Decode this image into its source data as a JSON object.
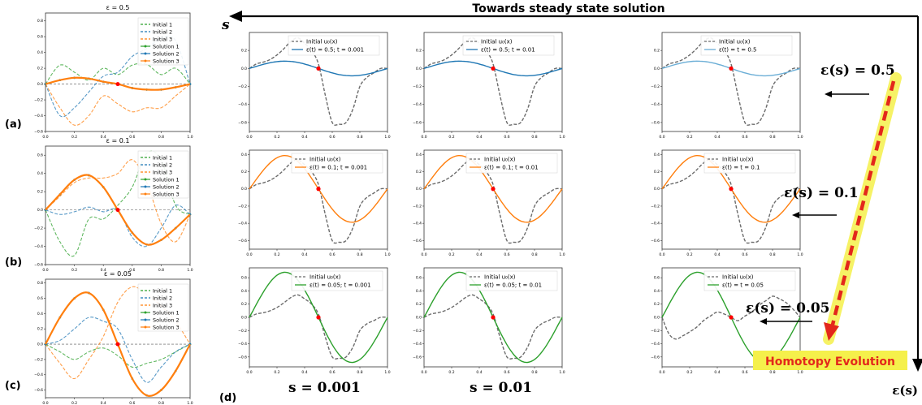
{
  "figure": {
    "top_arrow_label": "Towards steady state solution",
    "s_axis_label": "s",
    "eps_axis_label": "ε(s)",
    "homotopy_label": "Homotopy Evolution",
    "row_eps_labels": [
      "ε(s) = 0.5",
      "ε(s) = 0.1",
      "ε(s) = 0.05"
    ],
    "col_s_labels": [
      "s = 0.001",
      "s = 0.01"
    ],
    "panel_letters": [
      "(a)",
      "(b)",
      "(c)",
      "(d)"
    ],
    "colors": {
      "initial1": "#2ca02c",
      "initial2": "#1f77b4",
      "initial3": "#ff7f0e",
      "row_a": "#1f77b4",
      "row_a_steady": "#6baed6",
      "row_b": "#ff7f0e",
      "row_c": "#2ca02c",
      "init_dashed": "#6b6b6b",
      "center_point": "#ff0000",
      "homotopy_arrow": "#e3271b",
      "homotopy_glow": "#f5f04b"
    }
  },
  "chart_data": [
    {
      "type": "line",
      "panel": "a",
      "title": "ε = 0.5",
      "x": [
        0,
        0.1,
        0.2,
        0.3,
        0.4,
        0.5,
        0.6,
        0.7,
        0.8,
        0.9,
        1.0
      ],
      "xlim": [
        0,
        1
      ],
      "ylim": [
        -0.6,
        0.9
      ],
      "xticks": [
        "0.0",
        "0.2",
        "0.4",
        "0.6",
        "0.8",
        "1.0"
      ],
      "yticks": [
        "−0.6",
        "−0.4",
        "−0.2",
        "0.0",
        "0.2",
        "0.4",
        "0.6",
        "0.8"
      ],
      "series": [
        {
          "name": "Initial 1",
          "values": [
            0,
            0.24,
            0.15,
            0.05,
            0.2,
            0.12,
            0.24,
            0.25,
            0.12,
            0.2,
            0.0
          ]
        },
        {
          "name": "Initial 2",
          "values": [
            0,
            -0.4,
            -0.3,
            -0.1,
            0.1,
            0.15,
            0.35,
            0.45,
            0.58,
            0.55,
            0.0
          ]
        },
        {
          "name": "Initial 3",
          "values": [
            0,
            -0.3,
            -0.52,
            -0.4,
            -0.15,
            -0.25,
            -0.35,
            -0.3,
            -0.3,
            -0.15,
            0.0
          ]
        },
        {
          "name": "Solution 1",
          "values": [
            0,
            0.05,
            0.08,
            0.07,
            0.03,
            0,
            -0.05,
            -0.07,
            -0.07,
            -0.04,
            0
          ]
        },
        {
          "name": "Solution 2",
          "values": [
            0,
            0.05,
            0.08,
            0.07,
            0.03,
            0,
            -0.05,
            -0.07,
            -0.07,
            -0.04,
            0
          ]
        },
        {
          "name": "Solution 3",
          "values": [
            0,
            0.05,
            0.08,
            0.07,
            0.03,
            0,
            -0.05,
            -0.07,
            -0.07,
            -0.04,
            0
          ]
        }
      ],
      "center_point": [
        0.5,
        0
      ]
    },
    {
      "type": "line",
      "panel": "b",
      "title": "ε = 0.1",
      "x": [
        0,
        0.1,
        0.2,
        0.3,
        0.4,
        0.5,
        0.6,
        0.7,
        0.8,
        0.9,
        1.0
      ],
      "xlim": [
        0,
        1
      ],
      "ylim": [
        -0.6,
        0.7
      ],
      "xticks": [
        "0.0",
        "0.2",
        "0.4",
        "0.6",
        "0.8",
        "1.0"
      ],
      "yticks": [
        "−0.6",
        "−0.4",
        "−0.2",
        "0.0",
        "0.2",
        "0.4",
        "0.6"
      ],
      "series": [
        {
          "name": "Initial 1",
          "values": [
            0,
            -0.35,
            -0.5,
            -0.1,
            -0.1,
            0.05,
            0.25,
            0.62,
            0.55,
            0.05,
            -0.05
          ]
        },
        {
          "name": "Initial 2",
          "values": [
            0,
            -0.05,
            -0.02,
            0.03,
            -0.02,
            0.0,
            -0.3,
            -0.4,
            -0.2,
            0.05,
            -0.05
          ]
        },
        {
          "name": "Initial 3",
          "values": [
            0,
            0.15,
            0.3,
            0.35,
            0.35,
            0.4,
            0.55,
            0.3,
            -0.15,
            -0.35,
            -0.05
          ]
        },
        {
          "name": "Solution 1",
          "values": [
            0,
            0.17,
            0.33,
            0.38,
            0.25,
            0,
            -0.25,
            -0.38,
            -0.33,
            -0.2,
            -0.05
          ]
        },
        {
          "name": "Solution 2",
          "values": [
            0,
            0.17,
            0.33,
            0.38,
            0.25,
            0,
            -0.25,
            -0.38,
            -0.33,
            -0.2,
            -0.05
          ]
        },
        {
          "name": "Solution 3",
          "values": [
            0,
            0.17,
            0.33,
            0.38,
            0.25,
            0,
            -0.25,
            -0.38,
            -0.33,
            -0.2,
            -0.05
          ]
        }
      ],
      "center_point": [
        0.5,
        0
      ]
    },
    {
      "type": "line",
      "panel": "c",
      "title": "ε = 0.05",
      "x": [
        0,
        0.1,
        0.2,
        0.3,
        0.4,
        0.5,
        0.6,
        0.7,
        0.8,
        0.9,
        1.0
      ],
      "xlim": [
        0,
        1
      ],
      "ylim": [
        -0.7,
        0.85
      ],
      "xticks": [
        "0.0",
        "0.2",
        "0.4",
        "0.6",
        "0.8",
        "1.0"
      ],
      "yticks": [
        "−0.6",
        "−0.4",
        "−0.2",
        "0.0",
        "0.2",
        "0.4",
        "0.6",
        "0.8"
      ],
      "series": [
        {
          "name": "Initial 1",
          "values": [
            0,
            -0.1,
            -0.2,
            -0.1,
            -0.05,
            -0.15,
            -0.3,
            -0.25,
            -0.2,
            -0.1,
            0.0
          ]
        },
        {
          "name": "Initial 2",
          "values": [
            0,
            0.05,
            0.2,
            0.35,
            0.3,
            0.2,
            -0.2,
            -0.5,
            -0.3,
            -0.1,
            0.0
          ]
        },
        {
          "name": "Initial 3",
          "values": [
            0,
            -0.25,
            -0.45,
            -0.2,
            0.1,
            0.55,
            0.75,
            0.65,
            0.5,
            0.3,
            0.0
          ]
        },
        {
          "name": "Solution 1",
          "values": [
            0,
            0.35,
            0.6,
            0.67,
            0.45,
            0,
            -0.45,
            -0.67,
            -0.6,
            -0.35,
            0
          ]
        },
        {
          "name": "Solution 2",
          "values": [
            0,
            0.35,
            0.6,
            0.67,
            0.45,
            0,
            -0.45,
            -0.67,
            -0.6,
            -0.35,
            0
          ]
        },
        {
          "name": "Solution 3",
          "values": [
            0,
            0.35,
            0.6,
            0.67,
            0.45,
            0,
            -0.45,
            -0.67,
            -0.6,
            -0.35,
            0
          ]
        }
      ],
      "center_point": [
        0.5,
        0
      ]
    },
    {
      "type": "line",
      "panel": "d-grid",
      "initial_u0": {
        "name": "Initial u₀(x)",
        "x": [
          0,
          0.05,
          0.1,
          0.15,
          0.2,
          0.25,
          0.3,
          0.35,
          0.4,
          0.45,
          0.5,
          0.55,
          0.6,
          0.65,
          0.7,
          0.75,
          0.8,
          0.85,
          0.9,
          0.95,
          1.0
        ],
        "values": [
          0,
          0.05,
          0.07,
          0.1,
          0.15,
          0.22,
          0.3,
          0.34,
          0.28,
          0.2,
          0.05,
          -0.3,
          -0.6,
          -0.62,
          -0.6,
          -0.45,
          -0.2,
          -0.1,
          -0.05,
          0.0,
          0.0
        ]
      },
      "initial_u0_c3": {
        "name": "Initial u₀(x)",
        "x": [
          0,
          0.05,
          0.1,
          0.15,
          0.2,
          0.25,
          0.3,
          0.35,
          0.4,
          0.45,
          0.5,
          0.55,
          0.6,
          0.65,
          0.7,
          0.75,
          0.8,
          0.85,
          0.9,
          0.95,
          1.0
        ],
        "values": [
          0,
          -0.25,
          -0.33,
          -0.28,
          -0.22,
          -0.15,
          -0.05,
          0.02,
          0.08,
          0.05,
          0.0,
          -0.05,
          0.02,
          0.08,
          0.18,
          0.25,
          0.32,
          0.28,
          0.22,
          0.12,
          0.0
        ]
      },
      "rows": [
        {
          "ylim": [
            -0.7,
            0.4
          ],
          "yticks": [
            "0.2",
            "0.0",
            "−0.2",
            "−0.4",
            "−0.6"
          ],
          "cells": [
            {
              "legend": "ε(t) = 0.5; t = 0.001",
              "amplitude": 0.08,
              "color_key": "row_a"
            },
            {
              "legend": "ε(t) = 0.5; t = 0.01",
              "amplitude": 0.08,
              "color_key": "row_a"
            },
            {
              "legend": "ε(t) = t = 0.5",
              "amplitude": 0.08,
              "color_key": "row_a_steady"
            }
          ]
        },
        {
          "ylim": [
            -0.7,
            0.45
          ],
          "yticks": [
            "0.4",
            "0.2",
            "0.0",
            "−0.2",
            "−0.4",
            "−0.6"
          ],
          "cells": [
            {
              "legend": "ε(t) = 0.1; t = 0.001",
              "amplitude": 0.38,
              "color_key": "row_b"
            },
            {
              "legend": "ε(t) = 0.1; t = 0.01",
              "amplitude": 0.38,
              "color_key": "row_b"
            },
            {
              "legend": "ε(t) = t = 0.1",
              "amplitude": 0.38,
              "color_key": "row_b"
            }
          ]
        },
        {
          "ylim": [
            -0.75,
            0.75
          ],
          "yticks": [
            "0.6",
            "0.4",
            "0.2",
            "0.0",
            "−0.2",
            "−0.4",
            "−0.6"
          ],
          "cells": [
            {
              "legend": "ε(t) = 0.05; t = 0.001",
              "amplitude": 0.67,
              "color_key": "row_c"
            },
            {
              "legend": "ε(t) = 0.05; t = 0.01",
              "amplitude": 0.67,
              "color_key": "row_c"
            },
            {
              "legend": "ε(t) = t = 0.05",
              "amplitude": 0.67,
              "color_key": "row_c"
            }
          ]
        }
      ],
      "xticks": [
        "0.0",
        "0.2",
        "0.4",
        "0.6",
        "0.8",
        "1.0"
      ]
    }
  ]
}
